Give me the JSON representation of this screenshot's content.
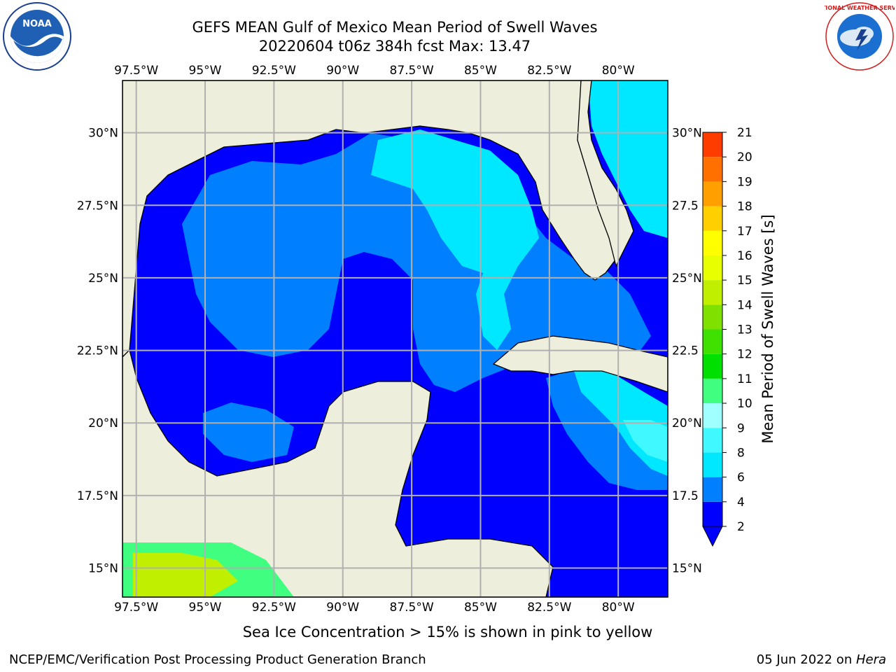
{
  "header": {
    "title": "GEFS MEAN Gulf of Mexico Mean Period of Swell Waves",
    "subtitle": "20220604 t06z 384h fcst   Max: 13.47"
  },
  "logos": {
    "left": {
      "name": "noaa-logo",
      "text": "NOAA"
    },
    "right": {
      "name": "nws-logo",
      "text": "NATIONAL WEATHER SERVICE"
    }
  },
  "map": {
    "lon_range": [
      -98.0,
      -78.2
    ],
    "lat_range": [
      14.0,
      31.8
    ],
    "lon_ticks": [
      "97.5°W",
      "95°W",
      "92.5°W",
      "90°W",
      "87.5°W",
      "85°W",
      "82.5°W",
      "80°W"
    ],
    "lat_ticks_left": [
      "30°N",
      "27.5°N",
      "25°N",
      "22.5°N",
      "20°N",
      "17.5°N",
      "15°N"
    ],
    "lat_ticks_right": [
      "30°N",
      "27.5",
      "25°N",
      "22.5",
      "20°N",
      "17.5",
      "15°N"
    ],
    "land_color": "#eeeedc",
    "grid_color": "#b0b0b0"
  },
  "colorbar": {
    "label": "Mean Period of Swell Waves [s]",
    "ticks": [
      "2",
      "4",
      "6",
      "8",
      "9",
      "10",
      "11",
      "12",
      "13",
      "14",
      "15",
      "16",
      "17",
      "18",
      "19",
      "20",
      "21"
    ],
    "colors": [
      "#0000ff",
      "#0080ff",
      "#00e8ff",
      "#40f8ff",
      "#a0ffff",
      "#40ff80",
      "#00e000",
      "#40e000",
      "#80e000",
      "#c0f000",
      "#e8ff00",
      "#ffff00",
      "#ffd000",
      "#ffa000",
      "#ff7000",
      "#ff3c00",
      "#ff0000"
    ]
  },
  "notes": {
    "ice": "Sea Ice Concentration > 15% is shown in pink to yellow"
  },
  "footer": {
    "left": "NCEP/EMC/Verification Post Processing Product Generation Branch",
    "date": "05 Jun 2022 on ",
    "host": "Hera"
  }
}
